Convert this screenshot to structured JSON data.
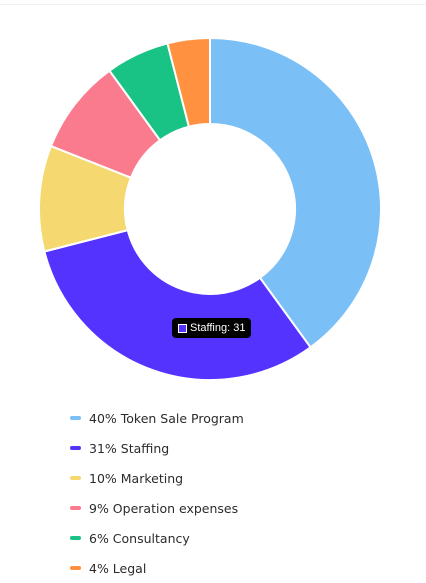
{
  "chart_data": {
    "type": "pie",
    "variant": "donut",
    "slices": [
      {
        "label": "40% Token Sale Program",
        "name": "Token Sale Program",
        "value": 40,
        "color": "#7abff6"
      },
      {
        "label": "31% Staffing",
        "name": "Staffing",
        "value": 31,
        "color": "#5533ff"
      },
      {
        "label": "10% Marketing",
        "name": "Marketing",
        "value": 10,
        "color": "#f5d86f"
      },
      {
        "label": "9% Operation expenses",
        "name": "Operation expenses",
        "value": 9,
        "color": "#fa7b8d"
      },
      {
        "label": "6% Consultancy",
        "name": "Consultancy",
        "value": 6,
        "color": "#19c285"
      },
      {
        "label": "4% Legal",
        "name": "Legal",
        "value": 4,
        "color": "#ff9140"
      }
    ],
    "legend_position": "bottom"
  },
  "tooltip": {
    "label": "Staffing",
    "value": "31",
    "color": "#5533ff"
  }
}
